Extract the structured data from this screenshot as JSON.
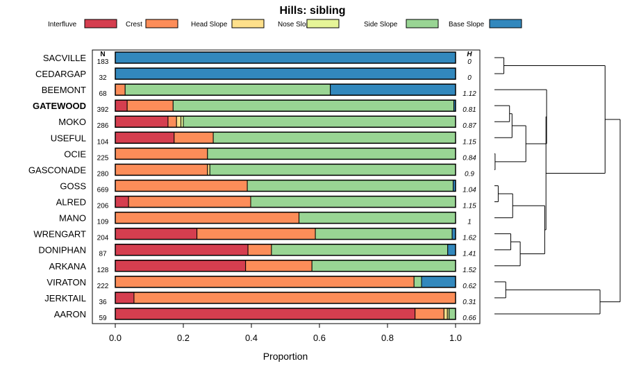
{
  "chart_data": {
    "type": "bar",
    "orientation": "horizontal",
    "stacked": true,
    "title": "Hills: sibling",
    "xlabel": "Proportion",
    "xlim": [
      0,
      1
    ],
    "xticks": [
      "0.0",
      "0.2",
      "0.4",
      "0.6",
      "0.8",
      "1.0"
    ],
    "n_header": "N",
    "h_header": "H",
    "highlighted": "GATEWOOD",
    "legend": [
      {
        "name": "Interfluve",
        "color": "#d53e4f"
      },
      {
        "name": "Crest",
        "color": "#fc8d59"
      },
      {
        "name": "Head Slope",
        "color": "#fee08b"
      },
      {
        "name": "Nose Slope",
        "color": "#e6f598"
      },
      {
        "name": "Side Slope",
        "color": "#99d594"
      },
      {
        "name": "Base Slope",
        "color": "#3288bd"
      }
    ],
    "categories": [
      "SACVILLE",
      "CEDARGAP",
      "BEEMONT",
      "GATEWOOD",
      "MOKO",
      "USEFUL",
      "OCIE",
      "GASCONADE",
      "GOSS",
      "ALRED",
      "MANO",
      "WRENGART",
      "DONIPHAN",
      "ARKANA",
      "VIRATON",
      "JERKTAIL",
      "AARON"
    ],
    "n": [
      "183",
      "32",
      "68",
      "392",
      "286",
      "104",
      "225",
      "280",
      "669",
      "206",
      "109",
      "204",
      "87",
      "128",
      "222",
      "36",
      "59"
    ],
    "h": [
      "0",
      "0",
      "1.12",
      "0.81",
      "0.87",
      "1.15",
      "0.84",
      "0.9",
      "1.04",
      "1.15",
      "1",
      "1.62",
      "1.41",
      "1.52",
      "0.62",
      "0.31",
      "0.66"
    ],
    "series": [
      {
        "name": "Interfluve",
        "values": [
          0,
          0,
          0,
          0.035,
          0.155,
          0.173,
          0,
          0,
          0,
          0.039,
          0,
          0.24,
          0.39,
          0.383,
          0,
          0.055,
          0.881
        ]
      },
      {
        "name": "Crest",
        "values": [
          0,
          0,
          0.029,
          0.135,
          0.025,
          0.115,
          0.271,
          0.271,
          0.388,
          0.359,
          0.54,
          0.348,
          0.069,
          0.195,
          0.878,
          0.945,
          0.085
        ]
      },
      {
        "name": "Head Slope",
        "values": [
          0,
          0,
          0,
          0,
          0.013,
          0,
          0,
          0.007,
          0,
          0,
          0,
          0,
          0,
          0,
          0,
          0,
          0.01
        ]
      },
      {
        "name": "Nose Slope",
        "values": [
          0,
          0,
          0,
          0,
          0.007,
          0,
          0,
          0,
          0,
          0,
          0,
          0,
          0,
          0,
          0,
          0,
          0.005
        ]
      },
      {
        "name": "Side Slope",
        "values": [
          0,
          0,
          0.603,
          0.825,
          0.8,
          0.712,
          0.729,
          0.722,
          0.605,
          0.602,
          0.46,
          0.402,
          0.518,
          0.422,
          0.022,
          0,
          0.019
        ]
      },
      {
        "name": "Base Slope",
        "values": [
          1,
          1,
          0.368,
          0.005,
          0,
          0,
          0,
          0,
          0.007,
          0,
          0,
          0.01,
          0.023,
          0,
          0.1,
          0,
          0
        ]
      }
    ],
    "dendrogram": {
      "leaf_order": [
        "SACVILLE",
        "CEDARGAP",
        "BEEMONT",
        "GATEWOOD",
        "MOKO",
        "USEFUL",
        "OCIE",
        "GASCONADE",
        "GOSS",
        "ALRED",
        "MANO",
        "WRENGART",
        "DONIPHAN",
        "ARKANA",
        "VIRATON",
        "JERKTAIL",
        "AARON"
      ],
      "merges": [
        {
          "a": "SACVILLE",
          "b": "CEDARGAP",
          "height": 0.075
        },
        {
          "a": "OCIE",
          "b": "GASCONADE",
          "height": 0.005
        },
        {
          "a": "GATEWOOD",
          "b": "MOKO",
          "height": 0.12
        },
        {
          "a": "m3",
          "b": "USEFUL",
          "height": 0.14
        },
        {
          "a": "m4",
          "b": "m2",
          "height": 0.25
        },
        {
          "a": "GOSS",
          "b": "ALRED",
          "height": 0.03
        },
        {
          "a": "m6",
          "b": "MANO",
          "height": 0.145
        },
        {
          "a": "WRENGART",
          "b": "DONIPHAN",
          "height": 0.13
        },
        {
          "a": "m8",
          "b": "ARKANA",
          "height": 0.205
        },
        {
          "a": "m7",
          "b": "m9",
          "height": 0.4
        },
        {
          "a": "BEEMONT",
          "b": "m5",
          "height": 0.415
        },
        {
          "a": "m11",
          "b": "m10",
          "height": 0.41
        },
        {
          "a": "VIRATON",
          "b": "JERKTAIL",
          "height": 0.09
        },
        {
          "a": "m13",
          "b": "AARON",
          "height": 0.84
        },
        {
          "a": "m1",
          "b": "m12",
          "height": 0.88
        },
        {
          "a": "m15",
          "b": "m14",
          "height": 1.0
        }
      ]
    }
  }
}
